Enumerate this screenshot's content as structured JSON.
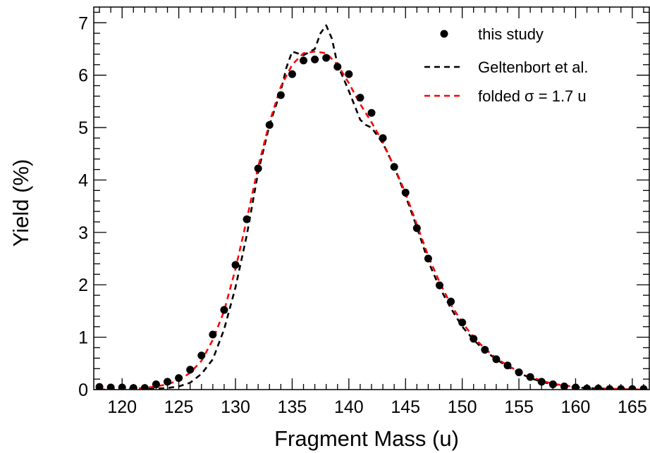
{
  "chart_data": {
    "type": "scatter",
    "title": "",
    "xlabel": "Fragment Mass (u)",
    "ylabel": "Yield (%)",
    "xlim": [
      117.5,
      166.5
    ],
    "ylim": [
      0,
      7.3
    ],
    "x_ticks": [
      120,
      125,
      130,
      135,
      140,
      145,
      150,
      155,
      160,
      165
    ],
    "y_ticks": [
      0,
      1,
      2,
      3,
      4,
      5,
      6,
      7
    ],
    "grid": false,
    "legend_position": "top-right",
    "series": [
      {
        "name": "this study",
        "style": "markers",
        "color": "#000000",
        "x": [
          118,
          119,
          120,
          121,
          122,
          123,
          124,
          125,
          126,
          127,
          128,
          129,
          130,
          131,
          132,
          133,
          134,
          135,
          136,
          137,
          138,
          139,
          140,
          141,
          142,
          143,
          144,
          145,
          146,
          147,
          148,
          149,
          150,
          151,
          152,
          153,
          154,
          155,
          156,
          157,
          158,
          159,
          160,
          161,
          162,
          163,
          164,
          165,
          166
        ],
        "y": [
          0.05,
          0.04,
          0.04,
          0.03,
          0.03,
          0.1,
          0.15,
          0.22,
          0.38,
          0.65,
          1.05,
          1.52,
          2.38,
          3.25,
          4.22,
          5.05,
          5.62,
          6.02,
          6.28,
          6.3,
          6.33,
          6.16,
          6.02,
          5.57,
          5.28,
          4.8,
          4.25,
          3.76,
          3.08,
          2.5,
          1.99,
          1.68,
          1.28,
          0.97,
          0.76,
          0.58,
          0.46,
          0.33,
          0.24,
          0.15,
          0.1,
          0.06,
          0.04,
          0.02,
          0.02,
          0.01,
          0.01,
          0.01,
          0.01
        ]
      },
      {
        "name": "Geltenbort et al.",
        "style": "dashed-line",
        "color": "#000000",
        "x": [
          118,
          120,
          122,
          123,
          124,
          125,
          126,
          127,
          128,
          129,
          130,
          131,
          132,
          133,
          134,
          134.5,
          135,
          136,
          137,
          137.5,
          138,
          138.5,
          139,
          140,
          141,
          141.5,
          142,
          143,
          144,
          145,
          146,
          147,
          148,
          149,
          150,
          151,
          152,
          153,
          154,
          155,
          156,
          157,
          158,
          160,
          162,
          164,
          166
        ],
        "y": [
          0,
          0,
          0.01,
          0.02,
          0.03,
          0.06,
          0.13,
          0.3,
          0.58,
          1.15,
          1.95,
          2.95,
          4.15,
          5.05,
          5.7,
          6.15,
          6.45,
          6.38,
          6.5,
          6.8,
          6.95,
          6.7,
          6.2,
          5.7,
          5.15,
          5.05,
          5.0,
          4.7,
          4.25,
          3.7,
          3.1,
          2.45,
          1.95,
          1.55,
          1.2,
          0.95,
          0.74,
          0.58,
          0.44,
          0.32,
          0.22,
          0.15,
          0.1,
          0.04,
          0.02,
          0.01,
          0
        ]
      },
      {
        "name": "folded σ = 1.7 u",
        "style": "dashed-line",
        "color": "#ff0000",
        "x": [
          118,
          120,
          122,
          123,
          124,
          125,
          126,
          127,
          128,
          129,
          130,
          131,
          132,
          133,
          134,
          135,
          136,
          137,
          138,
          139,
          140,
          141,
          142,
          143,
          144,
          145,
          146,
          147,
          148,
          149,
          150,
          151,
          152,
          153,
          154,
          155,
          156,
          157,
          158,
          160,
          162,
          164,
          166
        ],
        "y": [
          0,
          0.01,
          0.03,
          0.06,
          0.1,
          0.18,
          0.32,
          0.55,
          0.95,
          1.5,
          2.3,
          3.25,
          4.25,
          5.1,
          5.78,
          6.2,
          6.42,
          6.45,
          6.42,
          6.2,
          5.85,
          5.45,
          5.1,
          4.72,
          4.25,
          3.75,
          3.15,
          2.55,
          2.05,
          1.62,
          1.28,
          1.0,
          0.78,
          0.6,
          0.46,
          0.34,
          0.25,
          0.17,
          0.11,
          0.05,
          0.02,
          0.01,
          0
        ]
      }
    ]
  }
}
